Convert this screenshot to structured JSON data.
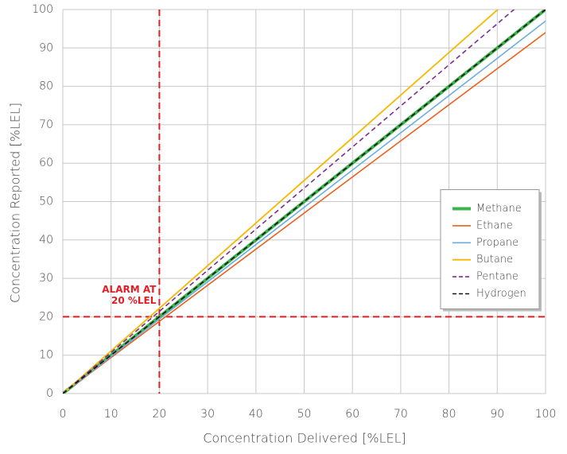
{
  "chart_data": {
    "type": "line",
    "x_label": "Concentration Delivered [%LEL]",
    "y_label": "Concentration Reported [%LEL]",
    "x": [
      0,
      100
    ],
    "series": [
      {
        "name": "Methane",
        "color": "#3cb44b",
        "style": "solid",
        "width": 4,
        "values": [
          0,
          100
        ]
      },
      {
        "name": "Ethane",
        "color": "#e8621e",
        "style": "solid",
        "width": 1.6,
        "values": [
          0,
          94
        ]
      },
      {
        "name": "Propane",
        "color": "#6aaee0",
        "style": "solid",
        "width": 1.6,
        "values": [
          0,
          97
        ]
      },
      {
        "name": "Butane",
        "color": "#f5b800",
        "style": "solid",
        "width": 1.8,
        "values": [
          0,
          111
        ]
      },
      {
        "name": "Pentane",
        "color": "#7d2d91",
        "style": "dashed",
        "width": 1.6,
        "values": [
          0,
          107
        ]
      },
      {
        "name": "Hydrogen",
        "color": "#111111",
        "style": "dashed",
        "width": 1.6,
        "values": [
          0,
          100
        ]
      }
    ],
    "xlim": [
      0,
      100
    ],
    "ylim": [
      0,
      100
    ],
    "xticks": [
      0,
      10,
      20,
      30,
      40,
      50,
      60,
      70,
      80,
      90,
      100
    ],
    "yticks": [
      0,
      10,
      20,
      30,
      40,
      50,
      60,
      70,
      80,
      90,
      100
    ],
    "grid": true,
    "legend": "center right",
    "alarm": {
      "x": 20,
      "y": 20,
      "color": "#e31e24",
      "label": [
        "ALARM AT",
        "20 %LEL"
      ]
    }
  }
}
